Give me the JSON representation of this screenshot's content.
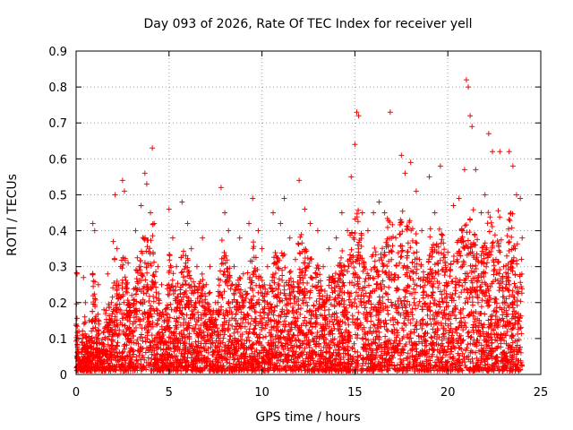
{
  "chart_data": {
    "type": "scatter",
    "title": "Day 093 of 2026, Rate Of TEC Index for receiver yell",
    "xlabel": "GPS time / hours",
    "ylabel": "ROTI / TECUs",
    "xlim": [
      0,
      25
    ],
    "ylim": [
      0,
      0.9
    ],
    "xticks": [
      0,
      5,
      10,
      15,
      20,
      25
    ],
    "yticks": [
      0,
      0.1,
      0.2,
      0.3,
      0.4,
      0.5,
      0.6,
      0.7,
      0.8,
      0.9
    ],
    "xtick_labels": [
      "0",
      "5",
      "10",
      "15",
      "20",
      "25"
    ],
    "ytick_labels": [
      "0",
      "0.1",
      "0.2",
      "0.3",
      "0.4",
      "0.5",
      "0.6",
      "0.7",
      "0.8",
      "0.9"
    ],
    "grid": true,
    "marker": "+",
    "color": "#ff0000",
    "series": [
      {
        "points": [
          [
            0.05,
            0.28
          ],
          [
            0.1,
            0.06
          ],
          [
            0.15,
            0.12
          ],
          [
            0.2,
            0.04
          ],
          [
            0.3,
            0.09
          ],
          [
            0.4,
            0.27
          ],
          [
            0.5,
            0.2
          ],
          [
            0.6,
            0.08
          ],
          [
            0.7,
            0.15
          ],
          [
            0.8,
            0.1
          ],
          [
            0.9,
            0.42
          ],
          [
            1.0,
            0.4
          ],
          [
            1.1,
            0.12
          ],
          [
            1.2,
            0.25
          ],
          [
            1.3,
            0.06
          ],
          [
            1.5,
            0.18
          ],
          [
            1.7,
            0.28
          ],
          [
            1.9,
            0.2
          ],
          [
            2.0,
            0.37
          ],
          [
            2.1,
            0.5
          ],
          [
            2.2,
            0.35
          ],
          [
            2.4,
            0.3
          ],
          [
            2.5,
            0.54
          ],
          [
            2.6,
            0.51
          ],
          [
            2.8,
            0.31
          ],
          [
            3.0,
            0.22
          ],
          [
            3.2,
            0.4
          ],
          [
            3.5,
            0.47
          ],
          [
            3.7,
            0.56
          ],
          [
            3.8,
            0.53
          ],
          [
            4.0,
            0.45
          ],
          [
            4.1,
            0.63
          ],
          [
            4.2,
            0.42
          ],
          [
            4.4,
            0.3
          ],
          [
            4.6,
            0.25
          ],
          [
            4.8,
            0.18
          ],
          [
            5.0,
            0.46
          ],
          [
            5.2,
            0.38
          ],
          [
            5.4,
            0.3
          ],
          [
            5.7,
            0.48
          ],
          [
            6.0,
            0.42
          ],
          [
            6.2,
            0.35
          ],
          [
            6.5,
            0.3
          ],
          [
            6.8,
            0.38
          ],
          [
            7.0,
            0.25
          ],
          [
            7.2,
            0.3
          ],
          [
            7.5,
            0.2
          ],
          [
            7.8,
            0.52
          ],
          [
            8.0,
            0.45
          ],
          [
            8.2,
            0.4
          ],
          [
            8.5,
            0.3
          ],
          [
            8.8,
            0.38
          ],
          [
            9.0,
            0.28
          ],
          [
            9.3,
            0.42
          ],
          [
            9.5,
            0.49
          ],
          [
            9.8,
            0.4
          ],
          [
            10.0,
            0.35
          ],
          [
            10.3,
            0.3
          ],
          [
            10.6,
            0.45
          ],
          [
            11.0,
            0.42
          ],
          [
            11.2,
            0.49
          ],
          [
            11.5,
            0.38
          ],
          [
            11.8,
            0.32
          ],
          [
            12.0,
            0.54
          ],
          [
            12.3,
            0.46
          ],
          [
            12.6,
            0.42
          ],
          [
            13.0,
            0.4
          ],
          [
            13.3,
            0.3
          ],
          [
            13.6,
            0.35
          ],
          [
            14.0,
            0.38
          ],
          [
            14.3,
            0.45
          ],
          [
            14.6,
            0.4
          ],
          [
            14.8,
            0.55
          ],
          [
            15.0,
            0.64
          ],
          [
            15.1,
            0.73
          ],
          [
            15.2,
            0.72
          ],
          [
            15.4,
            0.45
          ],
          [
            15.7,
            0.4
          ],
          [
            16.0,
            0.45
          ],
          [
            16.3,
            0.48
          ],
          [
            16.6,
            0.45
          ],
          [
            16.9,
            0.73
          ],
          [
            17.2,
            0.38
          ],
          [
            17.5,
            0.61
          ],
          [
            17.7,
            0.56
          ],
          [
            18.0,
            0.59
          ],
          [
            18.3,
            0.51
          ],
          [
            18.6,
            0.4
          ],
          [
            19.0,
            0.55
          ],
          [
            19.3,
            0.45
          ],
          [
            19.6,
            0.58
          ],
          [
            20.0,
            0.34
          ],
          [
            20.3,
            0.47
          ],
          [
            20.6,
            0.49
          ],
          [
            20.9,
            0.57
          ],
          [
            21.0,
            0.82
          ],
          [
            21.1,
            0.8
          ],
          [
            21.2,
            0.72
          ],
          [
            21.3,
            0.69
          ],
          [
            21.5,
            0.57
          ],
          [
            21.8,
            0.45
          ],
          [
            22.0,
            0.5
          ],
          [
            22.2,
            0.67
          ],
          [
            22.4,
            0.62
          ],
          [
            22.8,
            0.62
          ],
          [
            23.0,
            0.3
          ],
          [
            23.3,
            0.62
          ],
          [
            23.5,
            0.58
          ],
          [
            23.7,
            0.5
          ],
          [
            23.9,
            0.49
          ],
          [
            24.0,
            0.38
          ]
        ]
      }
    ]
  }
}
